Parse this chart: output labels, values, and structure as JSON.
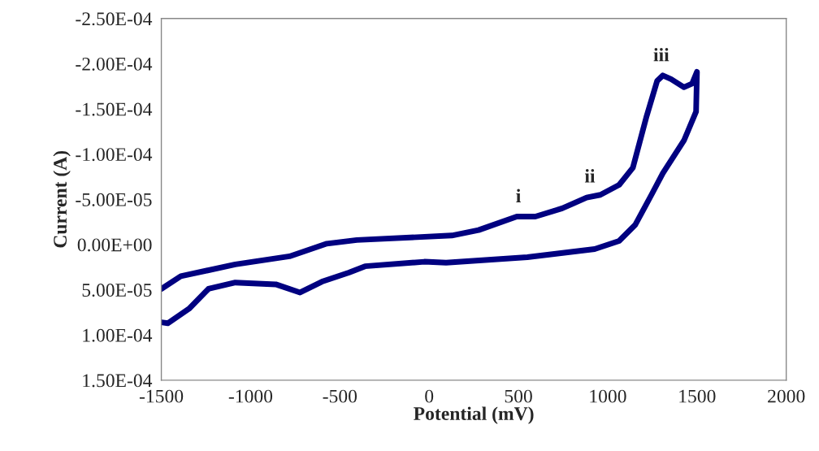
{
  "chart_data": {
    "type": "line",
    "xlabel": "Potential (mV)",
    "ylabel": "Current (A)",
    "xlim": [
      -1500,
      2000
    ],
    "xticks": [
      -1500,
      -1000,
      -500,
      0,
      500,
      1000,
      1500,
      2000
    ],
    "ylim": [
      0.00015,
      -0.00025
    ],
    "yticks": [
      {
        "value": -0.00025,
        "label": "-2.50E-04"
      },
      {
        "value": -0.0002,
        "label": "-2.00E-04"
      },
      {
        "value": -0.00015,
        "label": "-1.50E-04"
      },
      {
        "value": -0.0001,
        "label": "-1.00E-04"
      },
      {
        "value": -5e-05,
        "label": "-5.00E-05"
      },
      {
        "value": 0,
        "label": "0.00E+00"
      },
      {
        "value": 5e-05,
        "label": "5.00E-05"
      },
      {
        "value": 0.0001,
        "label": "1.00E-04"
      },
      {
        "value": 0.00015,
        "label": "1.50E-04"
      }
    ],
    "grid": false,
    "marker": "none",
    "line_style": "solid",
    "series": [
      {
        "color": "#000080",
        "x": [
          -1500,
          -1391,
          -1086,
          -782,
          -573,
          -405,
          127,
          277,
          491,
          595,
          745,
          882,
          959,
          1064,
          1141,
          1218,
          1277,
          1309,
          1355,
          1427,
          1473,
          1500,
          1495,
          1427,
          1309,
          1245,
          1155,
          1064,
          927,
          550,
          95,
          -27,
          -359,
          -450,
          -600,
          -723,
          -859,
          -1086,
          -1236,
          -1345,
          -1464,
          -1500
        ],
        "values": [
          4.9e-05,
          3.5e-05,
          2.2e-05,
          1.3e-05,
          -1e-06,
          -5e-06,
          -1e-05,
          -1.6e-05,
          -3.1e-05,
          -3.1e-05,
          -4e-05,
          -5.2e-05,
          -5.5e-05,
          -6.6e-05,
          -8.5e-05,
          -0.000142,
          -0.000181,
          -0.000187,
          -0.000183,
          -0.000174,
          -0.000178,
          -0.000191,
          -0.000147,
          -0.000115,
          -7.9e-05,
          -5.5e-05,
          -2.2e-05,
          -4e-06,
          5e-06,
          1.4e-05,
          2e-05,
          1.9e-05,
          2.4e-05,
          3.1e-05,
          4.1e-05,
          5.3e-05,
          4.4e-05,
          4.2e-05,
          4.9e-05,
          7.1e-05,
          8.7e-05,
          8.6e-05
        ]
      }
    ],
    "annotations": [
      {
        "text": "i",
        "x": 500,
        "y": -3.1e-05
      },
      {
        "text": "ii",
        "x": 900,
        "y": -5.3e-05
      },
      {
        "text": "iii",
        "x": 1300,
        "y": -0.000187
      }
    ]
  }
}
